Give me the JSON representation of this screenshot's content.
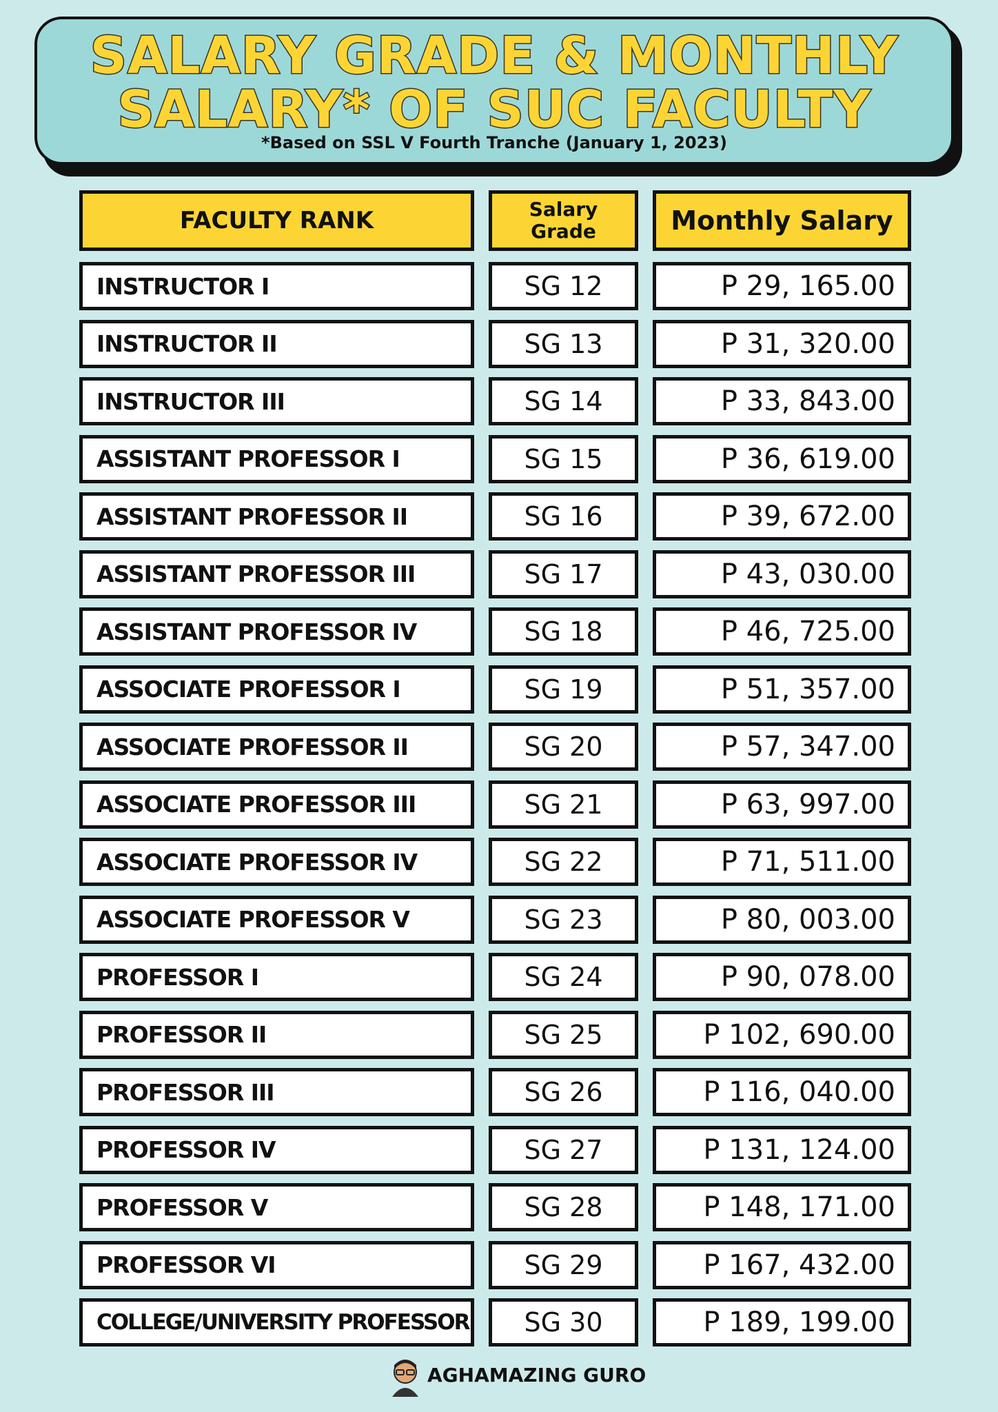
{
  "header": {
    "title_lines": [
      "SALARY GRADE & MONTHLY",
      "SALARY* OF SUC FACULTY"
    ],
    "subtitle": "*Based on SSL V Fourth Tranche (January 1, 2023)"
  },
  "table": {
    "columns": [
      "FACULTY RANK",
      "Salary Grade",
      "Monthly Salary"
    ],
    "rows": [
      [
        "INSTRUCTOR I",
        "SG 12",
        "P 29, 165.00"
      ],
      [
        "INSTRUCTOR II",
        "SG 13",
        "P 31, 320.00"
      ],
      [
        "INSTRUCTOR III",
        "SG 14",
        "P 33, 843.00"
      ],
      [
        "ASSISTANT PROFESSOR I",
        "SG 15",
        "P 36, 619.00"
      ],
      [
        "ASSISTANT PROFESSOR II",
        "SG 16",
        "P 39, 672.00"
      ],
      [
        "ASSISTANT PROFESSOR III",
        "SG 17",
        "P 43, 030.00"
      ],
      [
        "ASSISTANT PROFESSOR IV",
        "SG 18",
        "P 46, 725.00"
      ],
      [
        "ASSOCIATE PROFESSOR I",
        "SG 19",
        "P 51, 357.00"
      ],
      [
        "ASSOCIATE PROFESSOR II",
        "SG 20",
        "P 57, 347.00"
      ],
      [
        "ASSOCIATE PROFESSOR III",
        "SG 21",
        "P 63, 997.00"
      ],
      [
        "ASSOCIATE PROFESSOR IV",
        "SG 22",
        "P 71, 511.00"
      ],
      [
        "ASSOCIATE PROFESSOR V",
        "SG 23",
        "P 80, 003.00"
      ],
      [
        "PROFESSOR I",
        "SG 24",
        "P 90, 078.00"
      ],
      [
        "PROFESSOR II",
        "SG 25",
        "P 102, 690.00"
      ],
      [
        "PROFESSOR III",
        "SG 26",
        "P 116, 040.00"
      ],
      [
        "PROFESSOR IV",
        "SG 27",
        "P 131, 124.00"
      ],
      [
        "PROFESSOR V",
        "SG 28",
        "P 148, 171.00"
      ],
      [
        "PROFESSOR VI",
        "SG 29",
        "P 167, 432.00"
      ],
      [
        "COLLEGE/UNIVERSITY PROFESSOR",
        "SG 30",
        "P 189, 199.00"
      ]
    ]
  },
  "footer": {
    "brand": "AGHAMAZING GURO"
  }
}
